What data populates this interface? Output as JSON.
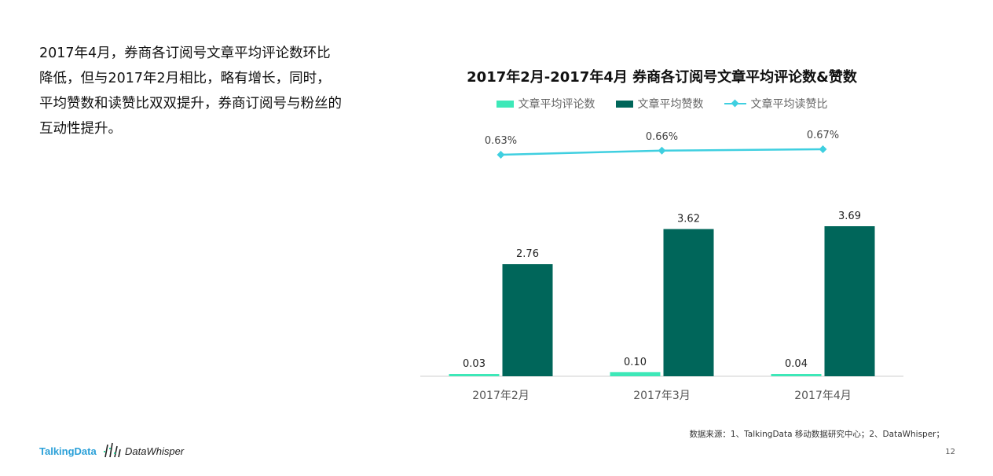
{
  "intro_text": "2017年4月，券商各订阅号文章平均评论数环比降低，但与2017年2月相比，略有增长，同时，平均赞数和读赞比双双提升，券商订阅号与粉丝的互动性提升。",
  "chart_data": {
    "type": "bar",
    "title": "2017年2月-2017年4月 券商各订阅号文章平均评论数&赞数",
    "categories": [
      "2017年2月",
      "2017年3月",
      "2017年4月"
    ],
    "series": [
      {
        "name": "文章平均评论数",
        "type": "bar",
        "color": "#3de8b8",
        "values": [
          0.03,
          0.1,
          0.04
        ],
        "labels": [
          "0.03",
          "0.10",
          "0.04"
        ]
      },
      {
        "name": "文章平均赞数",
        "type": "bar",
        "color": "#00665a",
        "values": [
          2.76,
          3.62,
          3.69
        ],
        "labels": [
          "2.76",
          "3.62",
          "3.69"
        ]
      },
      {
        "name": "文章平均读赞比",
        "type": "line",
        "color": "#3fcfe0",
        "values": [
          0.0063,
          0.0066,
          0.0067
        ],
        "labels": [
          "0.63%",
          "0.66%",
          "0.67%"
        ]
      }
    ],
    "grid": false,
    "legend_position": "top"
  },
  "footer": {
    "source": "数据来源：1、TalkingData 移动数据研究中心；2、DataWhisper；",
    "page_number": "12"
  },
  "logos": {
    "talkingdata": "TalkingData",
    "datawhisper": "DataWhisper"
  }
}
